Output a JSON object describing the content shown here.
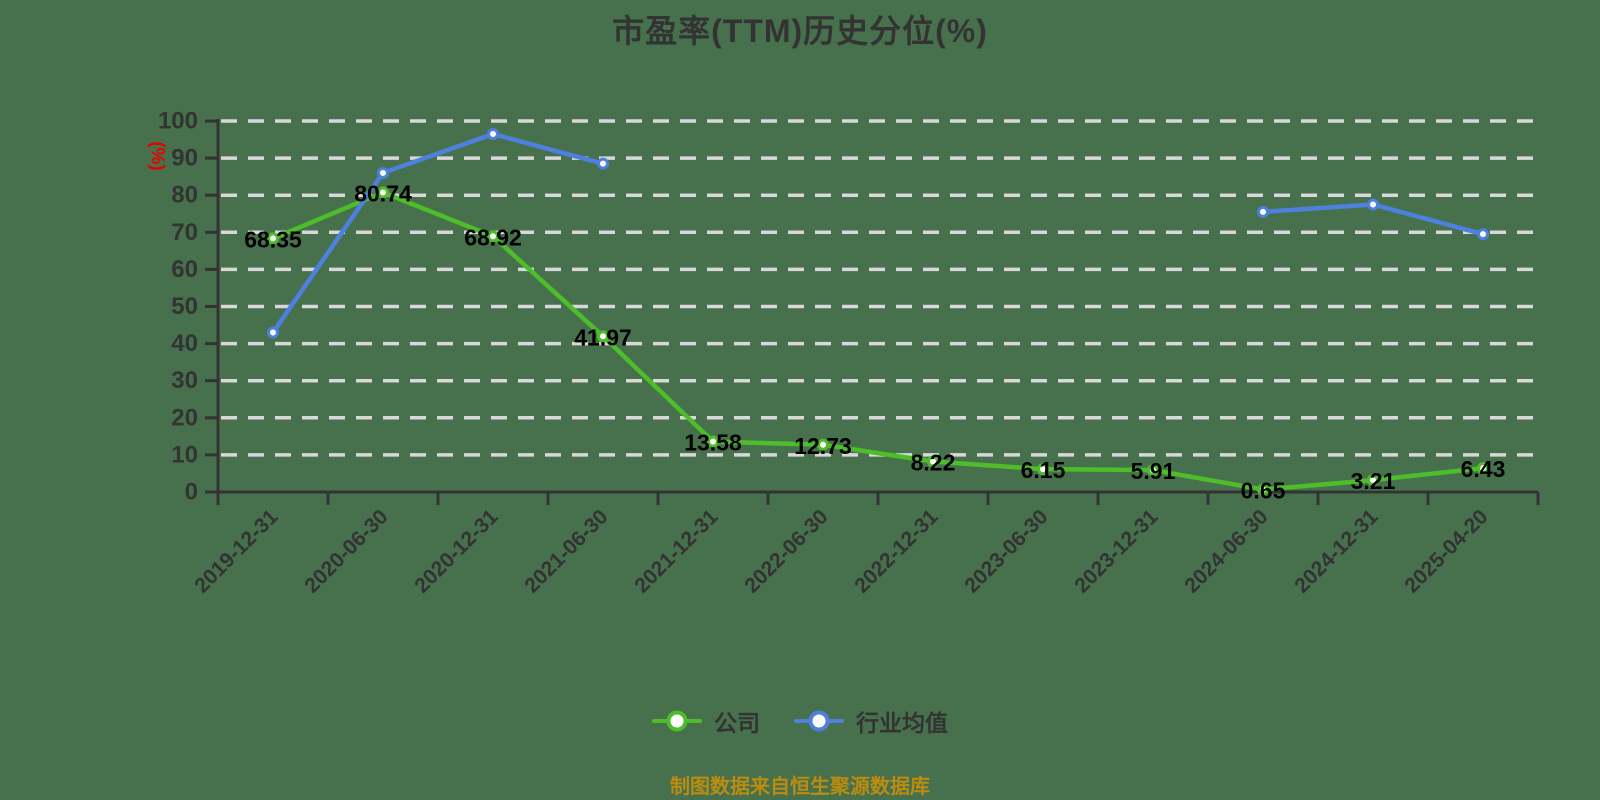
{
  "title": "市盈率(TTM)历史分位(%)",
  "footer": {
    "text": "制图数据来自恒生聚源数据库",
    "color": "#BA8C10"
  },
  "colors": {
    "background": "#47714D",
    "axis": "#333333",
    "gridline": "#D8D8D8",
    "data_label": "#000000",
    "y_unit_label": "#E60000",
    "company_series": "#4DBE2A",
    "industry_series": "#4E80DF"
  },
  "legend": {
    "items": [
      {
        "key": "company",
        "label": "公司"
      },
      {
        "key": "industry-average",
        "label": "行业均值"
      }
    ]
  },
  "chart_data": {
    "type": "line",
    "title": "市盈率(TTM)历史分位(%)",
    "xlabel": "",
    "ylabel": "(%)",
    "ylim": [
      0,
      100
    ],
    "ytick_step": 10,
    "grid": "horizontal-dashed",
    "legend_position": "bottom-center",
    "categories": [
      "2019-12-31",
      "2020-06-30",
      "2020-12-31",
      "2021-06-30",
      "2021-12-31",
      "2022-06-30",
      "2022-12-31",
      "2023-06-30",
      "2023-12-31",
      "2024-06-30",
      "2024-12-31",
      "2025-04-20"
    ],
    "series": [
      {
        "key": "company",
        "name": "公司",
        "color": "#4DBE2A",
        "show_labels": true,
        "values": [
          68.35,
          80.74,
          68.92,
          41.97,
          13.58,
          12.73,
          8.22,
          6.15,
          5.91,
          0.65,
          3.21,
          6.43
        ]
      },
      {
        "key": "industry-average",
        "name": "行业均值",
        "color": "#4E80DF",
        "show_labels": false,
        "values": [
          43,
          86,
          96.5,
          88.5,
          null,
          null,
          null,
          null,
          null,
          75.5,
          77.5,
          69.5
        ]
      }
    ],
    "source_note": "制图数据来自恒生聚源数据库"
  }
}
